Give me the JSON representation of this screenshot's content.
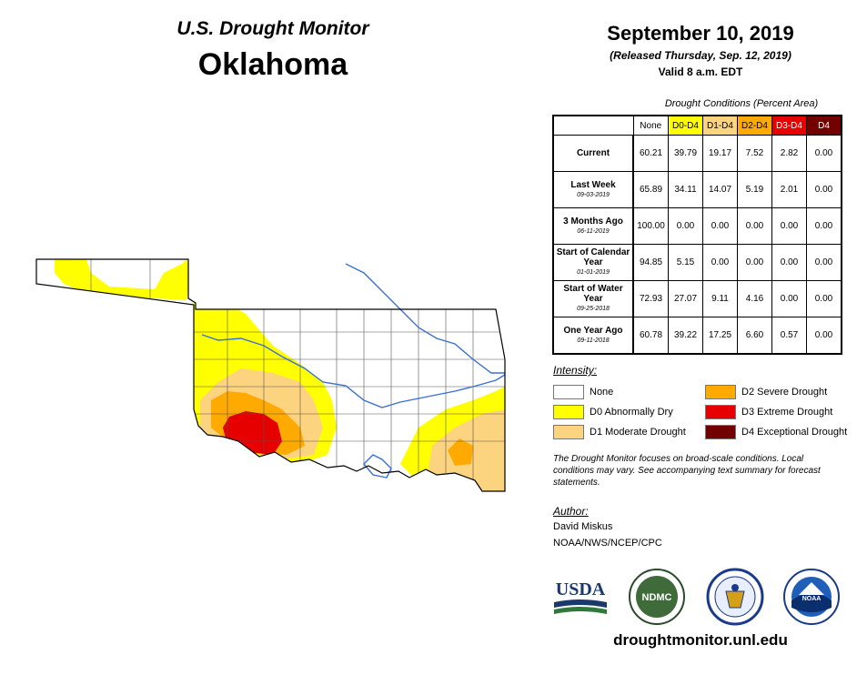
{
  "header": {
    "subtitle": "U.S. Drought Monitor",
    "state": "Oklahoma",
    "date": "September 10, 2019",
    "released": "(Released Thursday, Sep. 12, 2019)",
    "valid": "Valid 8 a.m. EDT"
  },
  "table": {
    "caption": "Drought Conditions (Percent Area)",
    "columns": [
      "None",
      "D0-D4",
      "D1-D4",
      "D2-D4",
      "D3-D4",
      "D4"
    ],
    "column_colors": [
      "#ffffff",
      "#ffff00",
      "#fcd37f",
      "#ffaa00",
      "#e60000",
      "#730000"
    ],
    "rows": [
      {
        "label": "Current",
        "sub": "",
        "values": [
          "60.21",
          "39.79",
          "19.17",
          "7.52",
          "2.82",
          "0.00"
        ]
      },
      {
        "label": "Last Week",
        "sub": "09-03-2019",
        "values": [
          "65.89",
          "34.11",
          "14.07",
          "5.19",
          "2.01",
          "0.00"
        ]
      },
      {
        "label": "3 Months Ago",
        "sub": "06-11-2019",
        "values": [
          "100.00",
          "0.00",
          "0.00",
          "0.00",
          "0.00",
          "0.00"
        ]
      },
      {
        "label": "Start of Calendar Year",
        "sub": "01-01-2019",
        "values": [
          "94.85",
          "5.15",
          "0.00",
          "0.00",
          "0.00",
          "0.00"
        ]
      },
      {
        "label": "Start of Water Year",
        "sub": "09-25-2018",
        "values": [
          "72.93",
          "27.07",
          "9.11",
          "4.16",
          "0.00",
          "0.00"
        ]
      },
      {
        "label": "One Year Ago",
        "sub": "09-11-2018",
        "values": [
          "60.78",
          "39.22",
          "17.25",
          "6.60",
          "0.57",
          "0.00"
        ]
      }
    ]
  },
  "legend": {
    "title": "Intensity:",
    "items": [
      {
        "label": "None",
        "color": "#ffffff"
      },
      {
        "label": "D0 Abnormally Dry",
        "color": "#ffff00"
      },
      {
        "label": "D1 Moderate Drought",
        "color": "#fcd37f"
      },
      {
        "label": "D2 Severe Drought",
        "color": "#ffaa00"
      },
      {
        "label": "D3 Extreme Drought",
        "color": "#e60000"
      },
      {
        "label": "D4 Exceptional Drought",
        "color": "#730000"
      }
    ]
  },
  "note": "The Drought Monitor focuses on broad-scale conditions. Local conditions may vary. See accompanying text summary for forecast statements.",
  "author": {
    "title": "Author:",
    "name": "David Miskus",
    "org": "NOAA/NWS/NCEP/CPC"
  },
  "logos": {
    "usda": "USDA",
    "ndmc": "NDMC",
    "noaa": "NOAA"
  },
  "site": "droughtmonitor.unl.edu"
}
